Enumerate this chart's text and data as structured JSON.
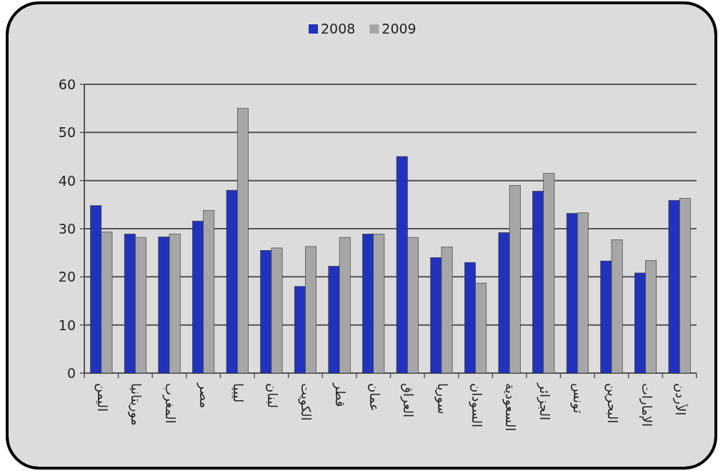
{
  "chart_data": {
    "type": "bar",
    "categories": [
      "اليمن",
      "موريتانيا",
      "المغرب",
      "مصر",
      "ليبيا",
      "لبنان",
      "الكويت",
      "قطر",
      "عمان",
      "العراق",
      "سوريا",
      "السودان",
      "السعودية",
      "الجزائر",
      "تونس",
      "البحرين",
      "الإمارات",
      "الأردن"
    ],
    "series": [
      {
        "name": "2008",
        "color": "#2233bb",
        "values": [
          34.8,
          28.9,
          28.3,
          31.6,
          38,
          25.5,
          18,
          22.2,
          28.9,
          45,
          24,
          23,
          29.2,
          37.8,
          33.2,
          23.3,
          20.8,
          35.9
        ]
      },
      {
        "name": "2009",
        "color": "#a6a6a6",
        "values": [
          29.3,
          28.2,
          28.9,
          33.8,
          55,
          26,
          26.3,
          28.2,
          28.9,
          28.2,
          26.2,
          18.7,
          39,
          41.5,
          33.3,
          27.7,
          23.4,
          36.3
        ]
      }
    ],
    "ylim": [
      0,
      60
    ],
    "yticks": [
      0,
      10,
      20,
      30,
      40,
      50,
      60
    ],
    "grid": "y",
    "legend": "top"
  }
}
